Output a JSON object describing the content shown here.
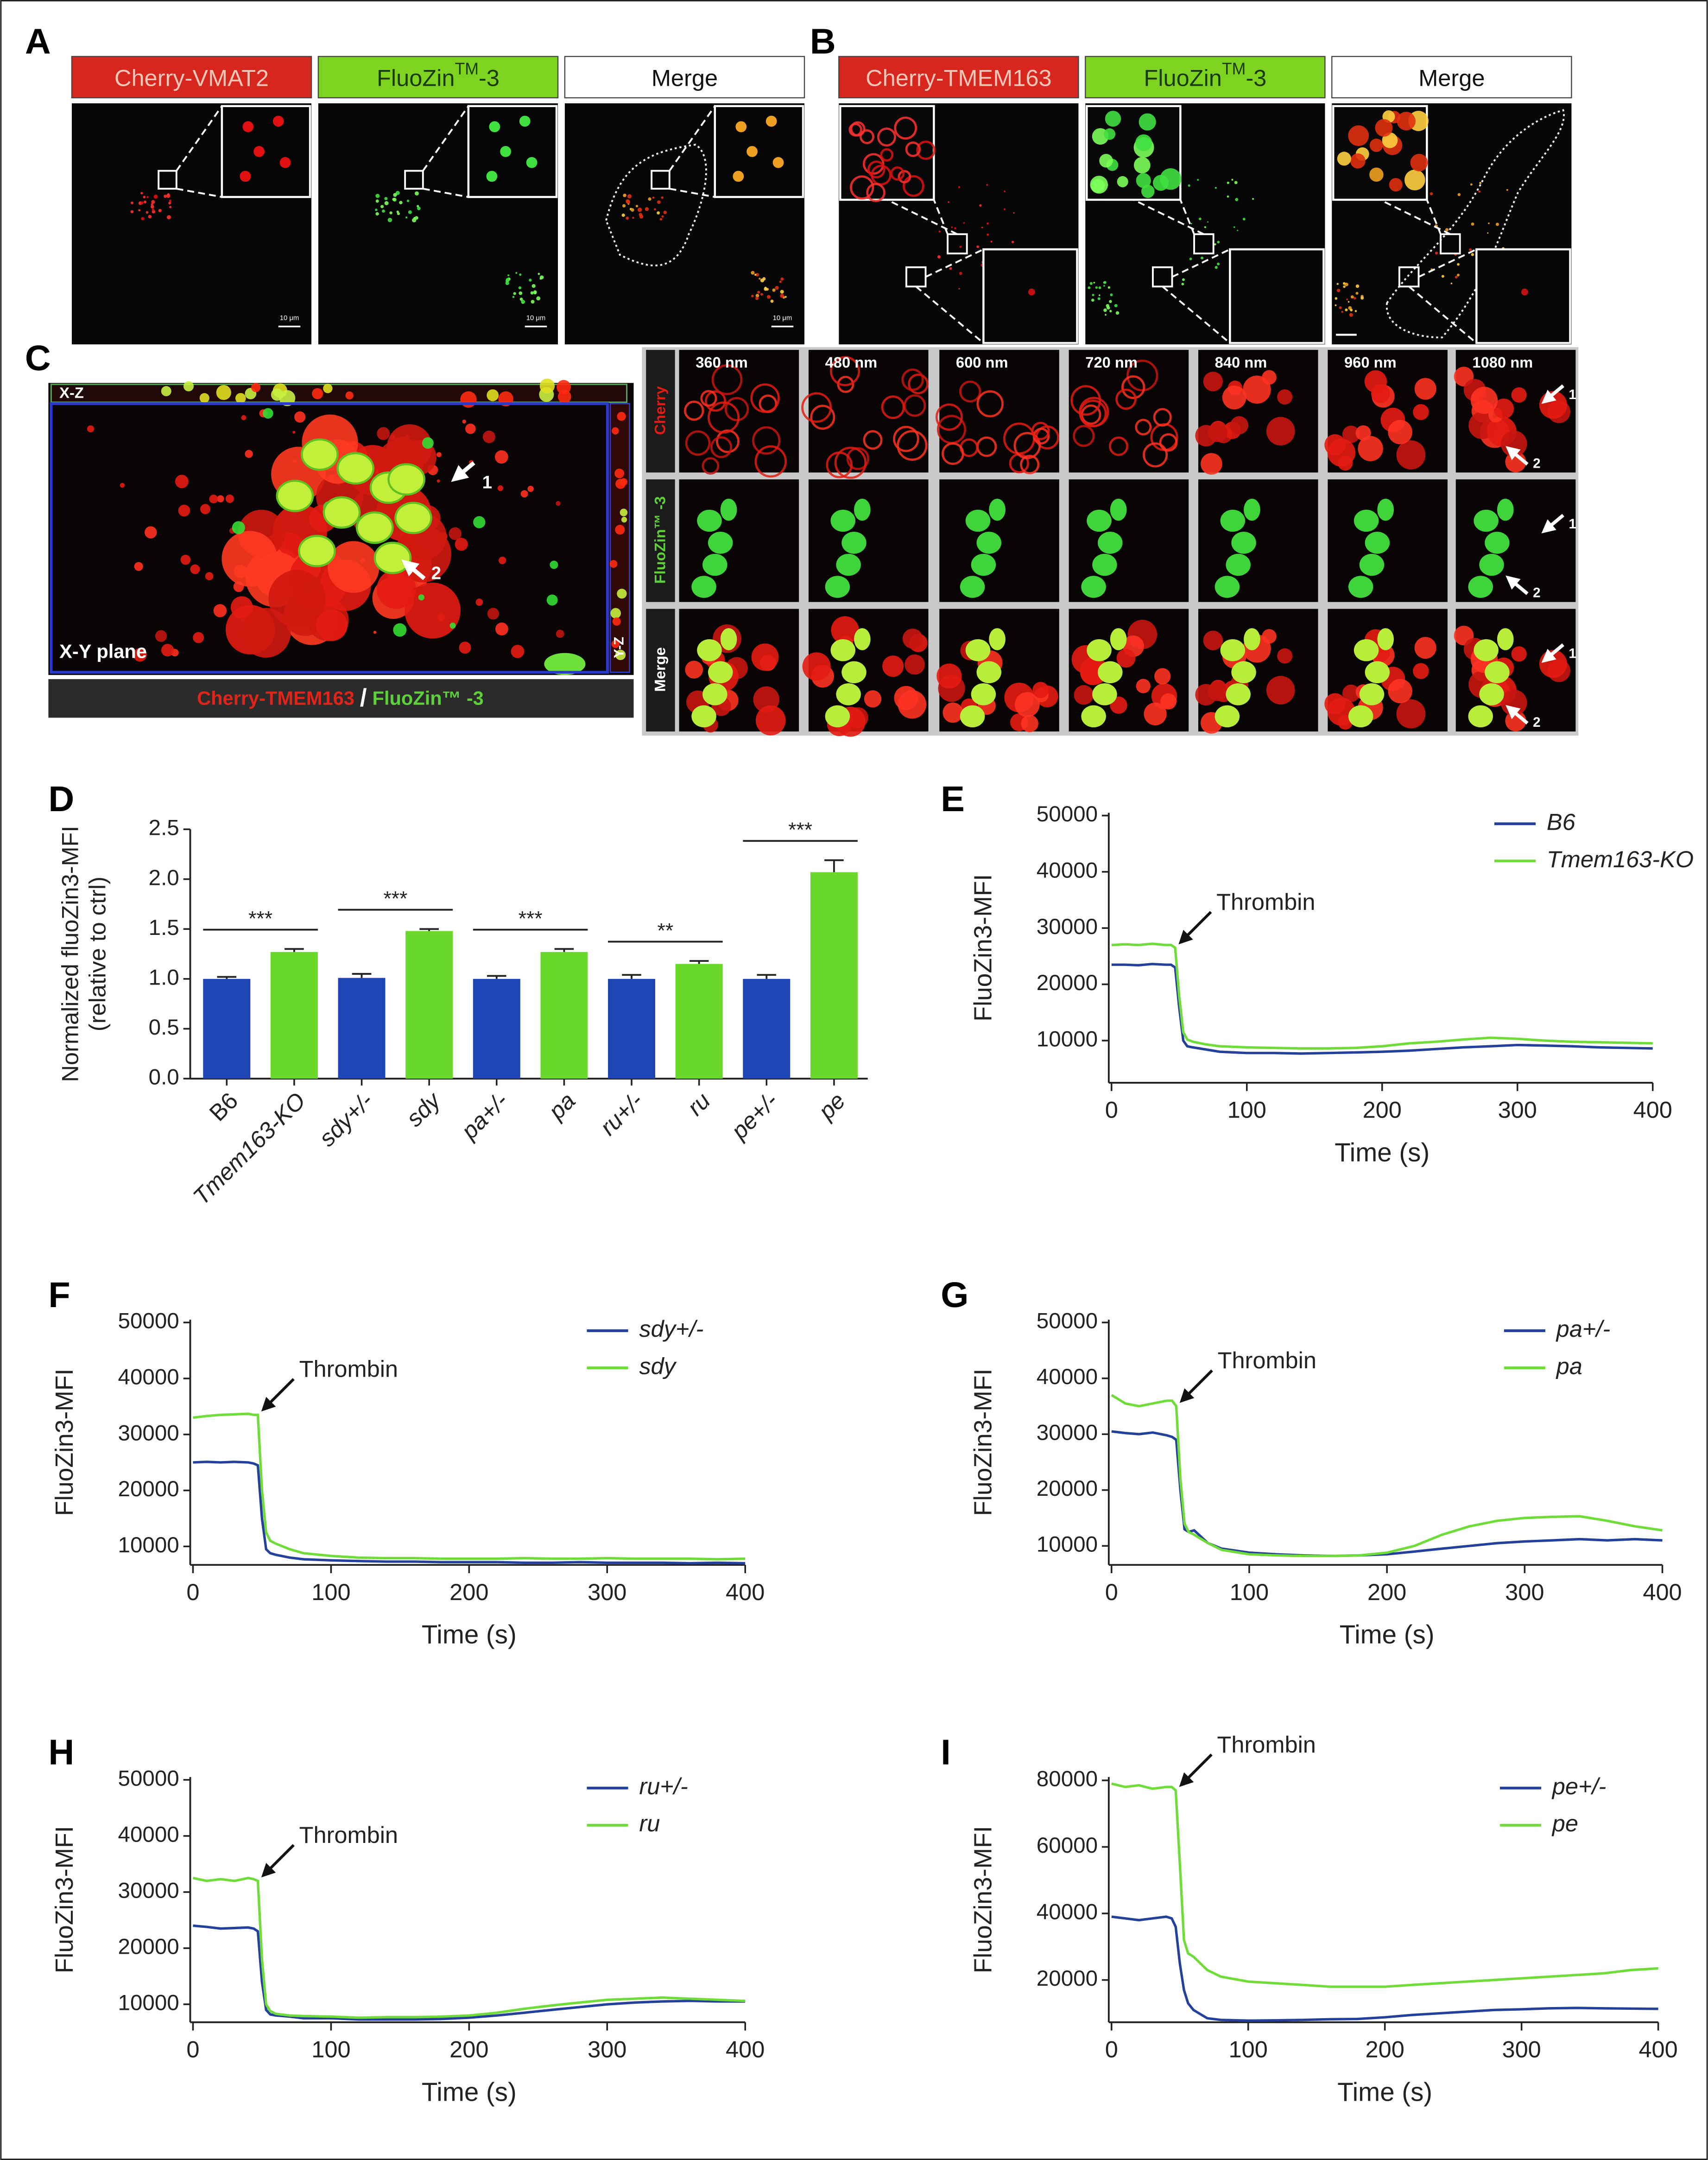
{
  "panel_labels": [
    "A",
    "B",
    "C",
    "D",
    "E",
    "F",
    "G",
    "H",
    "I"
  ],
  "panel_a": {
    "headers": [
      "Cherry-VMAT2",
      {
        "main": "FluoZin",
        "sup": "TM",
        "end": "-3"
      },
      "Merge"
    ],
    "scale_bars": [
      "10 μm",
      "10 μm",
      "10 μm"
    ]
  },
  "panel_b": {
    "headers": [
      "Cherry-TMEM163",
      {
        "main": "FluoZin",
        "sup": "TM",
        "end": "-3"
      },
      "Merge"
    ]
  },
  "panel_c": {
    "xz": "X-Z",
    "xy": "X-Y plane",
    "yz": "Y-Z",
    "caption": [
      "Cherry-TMEM163",
      "/",
      "FluoZin™ -3"
    ],
    "arrow_labels": [
      "1",
      "2"
    ],
    "depths": [
      "360 nm",
      "480 nm",
      "600 nm",
      "720 nm",
      "840 nm",
      "960 nm",
      "1080 nm"
    ],
    "rows": [
      "Cherry",
      "FluoZin™ -3",
      "Merge"
    ]
  },
  "chart_data": [
    {
      "type": "bar",
      "ylabel": [
        "Normalized fluoZin3-MFI",
        "(relative to ctrl)"
      ],
      "categories": [
        "B6",
        "Tmem163-KO",
        "sdy+/-",
        "sdy",
        "pa+/-",
        "pa",
        "ru+/-",
        "ru",
        "pe+/-",
        "pe"
      ],
      "values": [
        1.0,
        1.27,
        1.01,
        1.48,
        1.0,
        1.27,
        1.0,
        1.15,
        1.0,
        2.07
      ],
      "errors": [
        0.02,
        0.03,
        0.04,
        0.02,
        0.03,
        0.03,
        0.04,
        0.03,
        0.04,
        0.12
      ],
      "colors": [
        "#1f45b5",
        "#6ad82b",
        "#1f45b5",
        "#6ad82b",
        "#1f45b5",
        "#6ad82b",
        "#1f45b5",
        "#6ad82b",
        "#1f45b5",
        "#6ad82b"
      ],
      "significance": [
        {
          "pair": [
            0,
            1
          ],
          "label": "***"
        },
        {
          "pair": [
            2,
            3
          ],
          "label": "***"
        },
        {
          "pair": [
            4,
            5
          ],
          "label": "***"
        },
        {
          "pair": [
            6,
            7
          ],
          "label": "**"
        },
        {
          "pair": [
            8,
            9
          ],
          "label": "***"
        }
      ],
      "ylim": [
        0,
        2.5
      ],
      "yticks": [
        {
          "value": 0,
          "label": "0.0"
        },
        0.5,
        {
          "value": 1,
          "label": "1.0"
        },
        1.5,
        {
          "value": 2,
          "label": "2.0"
        },
        2.5
      ]
    },
    {
      "type": "line",
      "xlabel": "Time (s)",
      "ylabel": "FluoZin3-MFI",
      "annotation": "Thrombin",
      "legend": "upper right",
      "x": [
        0,
        10,
        20,
        30,
        40,
        44,
        47,
        50,
        53,
        56,
        60,
        70,
        80,
        100,
        120,
        140,
        160,
        180,
        200,
        220,
        240,
        260,
        280,
        300,
        320,
        340,
        360,
        380,
        400
      ],
      "series": [
        {
          "name": "B6",
          "color": "#23409a",
          "values": [
            23500,
            23500,
            23400,
            23600,
            23500,
            23500,
            23000,
            16000,
            10000,
            9000,
            8800,
            8400,
            8000,
            7800,
            7800,
            7700,
            7800,
            7900,
            8000,
            8200,
            8500,
            8800,
            9000,
            9200,
            9100,
            9000,
            8800,
            8700,
            8600
          ]
        },
        {
          "name": "Tmem163-KO",
          "color": "#6fdc3a",
          "values": [
            27000,
            27100,
            27000,
            27200,
            27000,
            27000,
            26500,
            18000,
            11500,
            10200,
            9800,
            9300,
            9000,
            8800,
            8700,
            8600,
            8600,
            8700,
            9000,
            9500,
            9800,
            10200,
            10500,
            10300,
            10000,
            9800,
            9700,
            9600,
            9500
          ]
        }
      ],
      "xlim": [
        0,
        400
      ],
      "xticks": [
        0,
        100,
        200,
        300,
        400
      ],
      "ylim": [
        2500,
        50500
      ],
      "yticks": [
        10000,
        20000,
        30000,
        40000,
        50000
      ]
    },
    {
      "type": "line",
      "xlabel": "Time (s)",
      "ylabel": "FluoZin3-MFI",
      "annotation": "Thrombin",
      "legend": "upper right",
      "x": [
        0,
        10,
        20,
        30,
        40,
        44,
        47,
        50,
        53,
        56,
        60,
        70,
        80,
        100,
        120,
        140,
        160,
        180,
        200,
        220,
        240,
        260,
        280,
        300,
        320,
        340,
        360,
        380,
        400
      ],
      "series": [
        {
          "name": "sdy+/-",
          "color": "#23409a",
          "values": [
            25000,
            25100,
            25000,
            25100,
            25000,
            24800,
            24500,
            15000,
            9500,
            8800,
            8500,
            8000,
            7700,
            7500,
            7400,
            7300,
            7300,
            7200,
            7200,
            7200,
            7100,
            7100,
            7200,
            7100,
            7100,
            7100,
            7000,
            7100,
            7000
          ]
        },
        {
          "name": "sdy",
          "color": "#6fdc3a",
          "values": [
            33000,
            33300,
            33500,
            33600,
            33700,
            33500,
            33500,
            20000,
            12500,
            11000,
            10500,
            9500,
            8800,
            8300,
            8000,
            7900,
            7900,
            7800,
            7800,
            7800,
            7900,
            7800,
            7800,
            7900,
            7800,
            7800,
            7800,
            7700,
            7800
          ]
        }
      ],
      "xlim": [
        0,
        400
      ],
      "xticks": [
        0,
        100,
        200,
        300,
        400
      ],
      "ylim": [
        6700,
        50500
      ],
      "yticks": [
        10000,
        20000,
        30000,
        40000,
        50000
      ]
    },
    {
      "type": "line",
      "xlabel": "Time (s)",
      "ylabel": "FluoZin3-MFI",
      "annotation": "Thrombin",
      "legend": "upper right",
      "x": [
        0,
        10,
        20,
        30,
        40,
        44,
        47,
        50,
        53,
        56,
        60,
        70,
        80,
        100,
        120,
        140,
        160,
        180,
        200,
        220,
        240,
        260,
        280,
        300,
        320,
        340,
        360,
        380,
        400
      ],
      "series": [
        {
          "name": "pa+/-",
          "color": "#23409a",
          "values": [
            30500,
            30200,
            30000,
            30300,
            29800,
            29500,
            29000,
            20000,
            13000,
            12500,
            12800,
            10500,
            9500,
            8800,
            8500,
            8300,
            8200,
            8300,
            8500,
            9000,
            9500,
            10000,
            10500,
            10800,
            11000,
            11200,
            11000,
            11200,
            11000
          ]
        },
        {
          "name": "pa",
          "color": "#6fdc3a",
          "values": [
            37000,
            35500,
            35000,
            35500,
            36000,
            36000,
            35000,
            22000,
            14000,
            12500,
            12000,
            10500,
            9300,
            8500,
            8300,
            8200,
            8200,
            8300,
            8800,
            10000,
            12000,
            13500,
            14500,
            15000,
            15200,
            15300,
            14500,
            13500,
            12800
          ]
        }
      ],
      "xlim": [
        0,
        400
      ],
      "xticks": [
        0,
        100,
        200,
        300,
        400
      ],
      "ylim": [
        6600,
        50500
      ],
      "yticks": [
        10000,
        20000,
        30000,
        40000,
        50000
      ]
    },
    {
      "type": "line",
      "xlabel": "Time (s)",
      "ylabel": "FluoZin3-MFI",
      "annotation": "Thrombin",
      "legend": "upper right",
      "x": [
        0,
        10,
        20,
        30,
        40,
        44,
        47,
        50,
        53,
        56,
        60,
        70,
        80,
        100,
        120,
        140,
        160,
        180,
        200,
        220,
        240,
        260,
        280,
        300,
        320,
        340,
        360,
        380,
        400
      ],
      "series": [
        {
          "name": "ru+/-",
          "color": "#23409a",
          "values": [
            24000,
            23800,
            23500,
            23600,
            23700,
            23500,
            23000,
            14000,
            9000,
            8200,
            8000,
            7800,
            7500,
            7500,
            7300,
            7300,
            7300,
            7400,
            7600,
            8000,
            8500,
            9000,
            9500,
            10000,
            10300,
            10500,
            10600,
            10500,
            10500
          ]
        },
        {
          "name": "ru",
          "color": "#6fdc3a",
          "values": [
            32500,
            32000,
            32300,
            32000,
            32500,
            32300,
            32000,
            18000,
            10000,
            8800,
            8300,
            8000,
            7900,
            7800,
            7600,
            7700,
            7700,
            7800,
            8000,
            8500,
            9200,
            9800,
            10300,
            10800,
            11000,
            11200,
            11000,
            10800,
            10600
          ]
        }
      ],
      "xlim": [
        0,
        400
      ],
      "xticks": [
        0,
        100,
        200,
        300,
        400
      ],
      "ylim": [
        6800,
        50500
      ],
      "yticks": [
        10000,
        20000,
        30000,
        40000,
        50000
      ]
    },
    {
      "type": "line",
      "xlabel": "Time (s)",
      "ylabel": "FluoZin3-MFI",
      "annotation": "Thrombin",
      "legend": "upper right",
      "x": [
        0,
        10,
        20,
        30,
        40,
        44,
        47,
        50,
        53,
        56,
        60,
        70,
        80,
        100,
        120,
        140,
        160,
        180,
        200,
        220,
        240,
        260,
        280,
        300,
        320,
        340,
        360,
        380,
        400
      ],
      "series": [
        {
          "name": "pe+/-",
          "color": "#23409a",
          "values": [
            39000,
            38500,
            38000,
            38500,
            39000,
            38500,
            36000,
            25000,
            17000,
            13000,
            11000,
            8500,
            8000,
            7800,
            7900,
            8000,
            8200,
            8300,
            8800,
            9500,
            10000,
            10500,
            11000,
            11200,
            11500,
            11600,
            11500,
            11400,
            11300
          ]
        },
        {
          "name": "pe",
          "color": "#6fdc3a",
          "values": [
            79000,
            78000,
            78500,
            77500,
            78000,
            78000,
            77000,
            55000,
            32000,
            28000,
            27000,
            23000,
            21000,
            19500,
            19000,
            18500,
            18000,
            18000,
            18000,
            18500,
            19000,
            19500,
            20000,
            20500,
            21000,
            21500,
            22000,
            23000,
            23500
          ]
        }
      ],
      "xlim": [
        0,
        400
      ],
      "xticks": [
        0,
        100,
        200,
        300,
        400
      ],
      "ylim": [
        7300,
        81000
      ],
      "yticks": [
        20000,
        40000,
        60000,
        80000
      ]
    }
  ]
}
